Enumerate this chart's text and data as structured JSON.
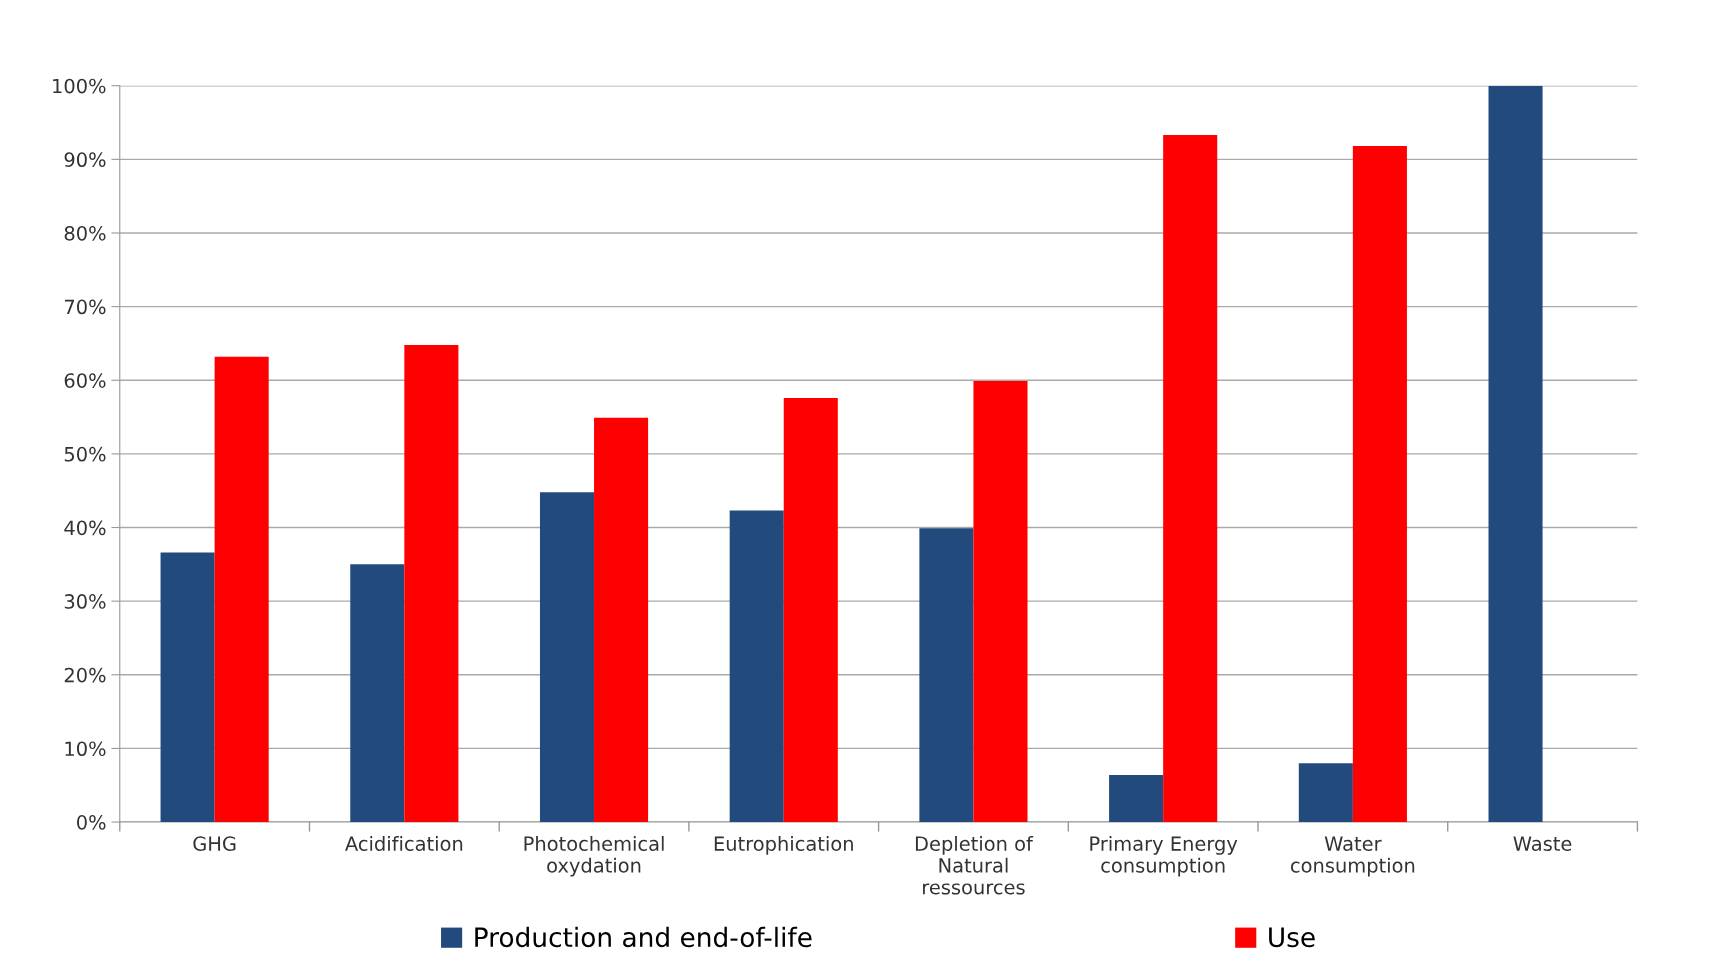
{
  "chart_data": {
    "type": "bar",
    "categories": [
      "GHG",
      "Acidification",
      "Photochemical\noxydation",
      "Eutrophication",
      "Depletion of\nNatural\nressources",
      "Primary Energy\nconsumption",
      "Water\nconsumption",
      "Waste"
    ],
    "series": [
      {
        "name": "Production and end-of-life",
        "color": "#234a7c",
        "values": [
          36.6,
          35.0,
          44.8,
          42.3,
          39.9,
          6.4,
          8.0,
          100
        ]
      },
      {
        "name": "Use",
        "color": "#ff0000",
        "values": [
          63.2,
          64.8,
          54.9,
          57.6,
          59.9,
          93.3,
          91.8,
          null
        ]
      }
    ],
    "ylim": [
      0,
      100
    ],
    "yticks": [
      {
        "value": 0,
        "label": "0%"
      },
      {
        "value": 10,
        "label": "10%"
      },
      {
        "value": 20,
        "label": "20%"
      },
      {
        "value": 30,
        "label": "30%"
      },
      {
        "value": 40,
        "label": "40%"
      },
      {
        "value": 50,
        "label": "50%"
      },
      {
        "value": 60,
        "label": "60%"
      },
      {
        "value": 70,
        "label": "70%"
      },
      {
        "value": 80,
        "label": "80%"
      },
      {
        "value": 90,
        "label": "90%"
      },
      {
        "value": 100,
        "label": "100%"
      }
    ],
    "grid": "y",
    "legend": "bottom"
  }
}
